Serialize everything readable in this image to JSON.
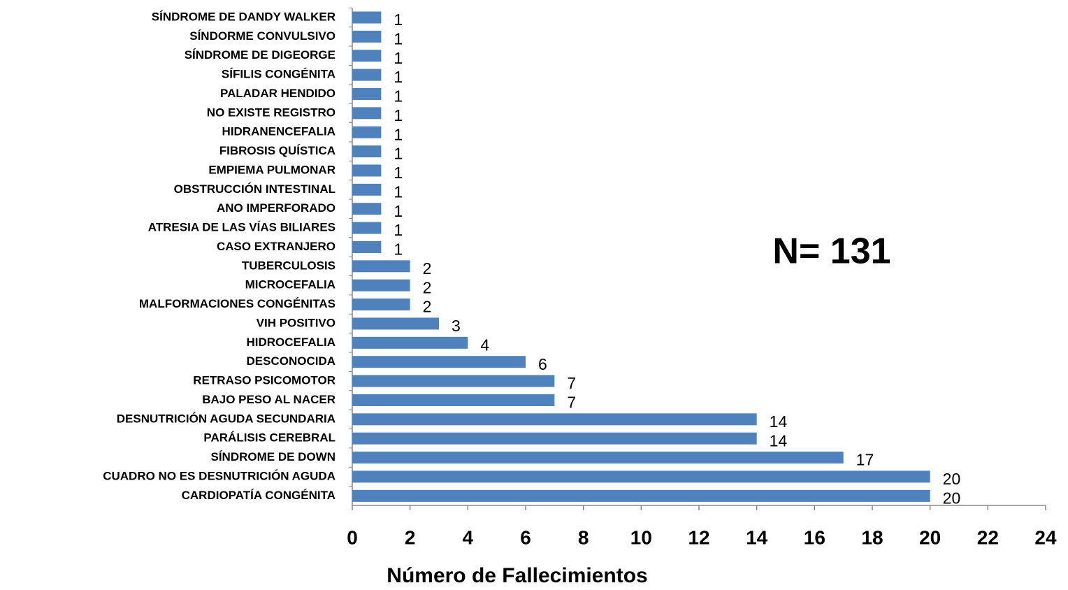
{
  "chart_data": {
    "type": "barh",
    "categories": [
      "SÍNDROME DE DANDY WALKER",
      "SÍNDORME CONVULSIVO",
      "SÍNDROME DE DIGEORGE",
      "SÍFILIS CONGÉNITA",
      "PALADAR HENDIDO",
      "NO EXISTE REGISTRO",
      "HIDRANENCEFALIA",
      "FIBROSIS QUÍSTICA",
      "EMPIEMA PULMONAR",
      "OBSTRUCCIÓN INTESTINAL",
      "ANO IMPERFORADO",
      "ATRESIA DE LAS VÍAS BILIARES",
      "CASO EXTRANJERO",
      "TUBERCULOSIS",
      "MICROCEFALIA",
      "MALFORMACIONES CONGÉNITAS",
      "VIH POSITIVO",
      "HIDROCEFALIA",
      "DESCONOCIDA",
      "RETRASO PSICOMOTOR",
      "BAJO PESO AL NACER",
      "DESNUTRICIÓN AGUDA SECUNDARIA",
      "PARÁLISIS CEREBRAL",
      "SÍNDROME DE DOWN",
      "CUADRO NO ES DESNUTRICIÓN AGUDA",
      "CARDIOPATÍA CONGÉNITA"
    ],
    "values": [
      1,
      1,
      1,
      1,
      1,
      1,
      1,
      1,
      1,
      1,
      1,
      1,
      1,
      2,
      2,
      2,
      3,
      4,
      6,
      7,
      7,
      14,
      14,
      17,
      20,
      20
    ],
    "color": "#4f81bd",
    "xlim": [
      0,
      24
    ],
    "xticks": [
      0,
      2,
      4,
      6,
      8,
      10,
      12,
      14,
      16,
      18,
      20,
      22,
      24
    ],
    "xlabel": "Número de Fallecimientos",
    "annotation": "N= 131"
  }
}
